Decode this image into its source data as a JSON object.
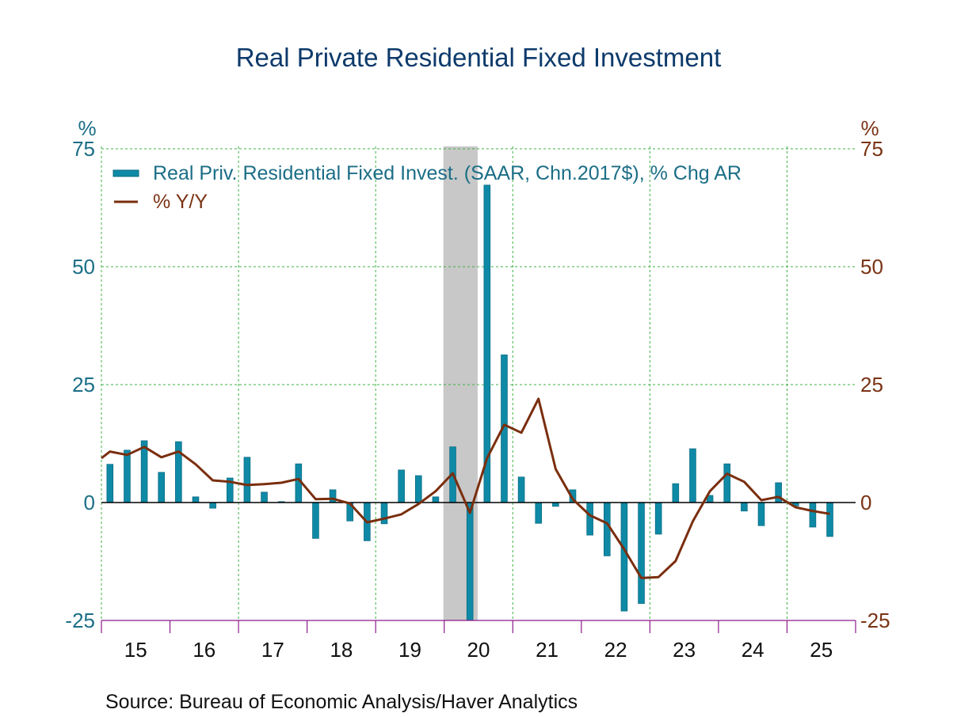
{
  "chart_data": {
    "type": "bar",
    "title": "Real Private Residential Fixed Investment",
    "source": "Source:  Bureau of Economic Analysis/Haver Analytics",
    "left_axis": {
      "unit": "%",
      "ylim": [
        -25,
        75
      ],
      "ticks": [
        -25,
        0,
        25,
        50,
        75
      ],
      "tick_labels": [
        "-25",
        "0",
        "25",
        "50",
        "75"
      ],
      "color": "#1b6e86"
    },
    "right_axis": {
      "unit": "%",
      "ylim": [
        -25,
        75
      ],
      "ticks": [
        -25,
        0,
        25,
        50,
        75
      ],
      "tick_labels": [
        "-25",
        "0",
        "25",
        "50",
        "75"
      ],
      "color": "#7a3314"
    },
    "x_labels": [
      "15",
      "16",
      "17",
      "18",
      "19",
      "20",
      "21",
      "22",
      "23",
      "24",
      "25"
    ],
    "grid": true,
    "legend_position": "top-left",
    "recession_shading": {
      "start": "2020Q1",
      "end": "2020Q2",
      "color": "#c8c8c8"
    },
    "categories": [
      "2015Q1",
      "2015Q2",
      "2015Q3",
      "2015Q4",
      "2016Q1",
      "2016Q2",
      "2016Q3",
      "2016Q4",
      "2017Q1",
      "2017Q2",
      "2017Q3",
      "2017Q4",
      "2018Q1",
      "2018Q2",
      "2018Q3",
      "2018Q4",
      "2019Q1",
      "2019Q2",
      "2019Q3",
      "2019Q4",
      "2020Q1",
      "2020Q2",
      "2020Q3",
      "2020Q4",
      "2021Q1",
      "2021Q2",
      "2021Q3",
      "2021Q4",
      "2022Q1",
      "2022Q2",
      "2022Q3",
      "2022Q4",
      "2023Q1",
      "2023Q2",
      "2023Q3",
      "2023Q4",
      "2024Q1",
      "2024Q2",
      "2024Q3",
      "2024Q4",
      "2025Q1",
      "2025Q2",
      "2025Q3"
    ],
    "series": [
      {
        "name": "Real Priv. Residential Fixed Invest. (SAAR, Chn.2017$), % Chg AR",
        "type": "bar",
        "axis": "left",
        "color": "#0f8aa6",
        "values": [
          8.1,
          11.1,
          13.1,
          6.4,
          12.9,
          1.2,
          -1.2,
          5.2,
          9.6,
          2.2,
          0.2,
          8.2,
          -7.6,
          2.7,
          -3.9,
          -8.1,
          -4.5,
          6.9,
          5.7,
          1.2,
          11.8,
          -25.0,
          67.3,
          31.3,
          5.4,
          -4.4,
          -0.8,
          2.7,
          -6.9,
          -11.3,
          -23.0,
          -21.4,
          -6.7,
          4.0,
          11.4,
          1.5,
          8.2,
          -1.8,
          -4.9,
          4.2,
          -0.7,
          -5.2,
          -7.2
        ]
      },
      {
        "name": "% Y/Y",
        "type": "line",
        "axis": "right",
        "color": "#7a2e0e",
        "start_value": 9.4,
        "values": [
          10.8,
          10.1,
          11.8,
          9.6,
          10.8,
          8.1,
          4.7,
          4.4,
          3.7,
          3.9,
          4.2,
          5.0,
          0.7,
          0.8,
          -0.2,
          -4.2,
          -3.4,
          -2.5,
          -0.3,
          2.4,
          6.2,
          -2.2,
          9.4,
          16.5,
          14.8,
          22.0,
          7.1,
          0.7,
          -2.7,
          -4.4,
          -9.9,
          -16.0,
          -15.8,
          -12.4,
          -4.0,
          2.4,
          6.1,
          4.4,
          0.5,
          1.2,
          -1.0,
          -1.8,
          -2.4
        ]
      }
    ]
  }
}
